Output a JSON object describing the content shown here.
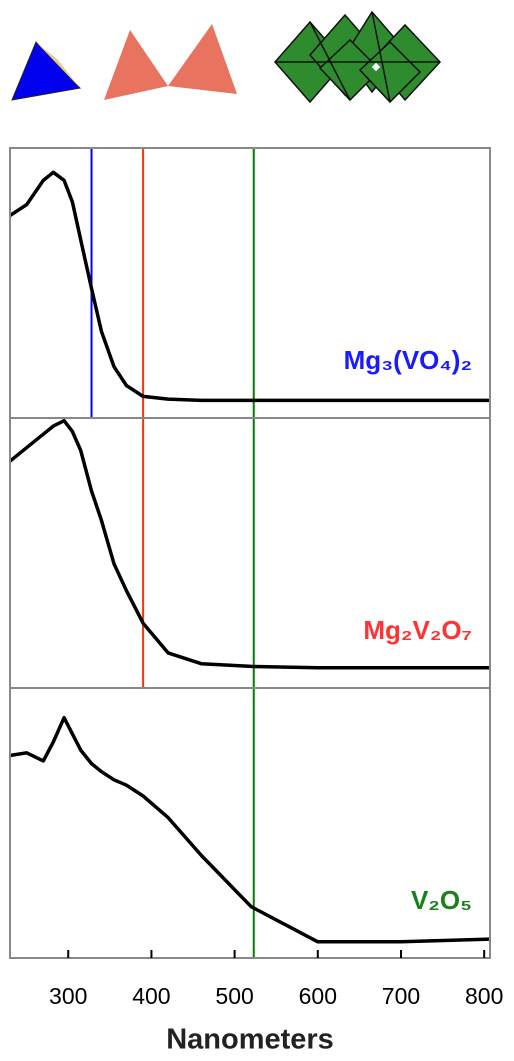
{
  "chart_data": [
    {
      "type": "line",
      "x": [
        230,
        250,
        270,
        282,
        295,
        305,
        315,
        328,
        340,
        355,
        370,
        390,
        420,
        460,
        520,
        600,
        700,
        807
      ],
      "series": [
        {
          "name": "Mg₃(VO₄)₂",
          "color": "#000000",
          "label_color": "#1a1aff",
          "values": [
            0.75,
            0.79,
            0.88,
            0.91,
            0.88,
            0.8,
            0.66,
            0.48,
            0.32,
            0.19,
            0.12,
            0.08,
            0.07,
            0.065,
            0.065,
            0.065,
            0.065,
            0.065
          ]
        }
      ],
      "vlines": [
        {
          "x": 328,
          "color": "#0000ff"
        },
        {
          "x": 390,
          "color": "#ff3300"
        },
        {
          "x": 523,
          "color": "#008000"
        }
      ],
      "xlim": [
        230,
        807
      ],
      "ylim": [
        0,
        1
      ]
    },
    {
      "type": "line",
      "x": [
        230,
        250,
        270,
        282,
        295,
        305,
        315,
        328,
        340,
        355,
        370,
        390,
        420,
        460,
        520,
        600,
        700,
        807
      ],
      "series": [
        {
          "name": "Mg₂V₂O₇",
          "color": "#000000",
          "label_color": "#ff3333",
          "values": [
            0.84,
            0.89,
            0.94,
            0.97,
            0.99,
            0.95,
            0.88,
            0.73,
            0.62,
            0.46,
            0.36,
            0.24,
            0.13,
            0.09,
            0.08,
            0.075,
            0.075,
            0.075
          ]
        }
      ],
      "vlines": [
        {
          "x": 390,
          "color": "#ff3300"
        },
        {
          "x": 523,
          "color": "#008000"
        }
      ],
      "xlim": [
        230,
        807
      ],
      "ylim": [
        0,
        1
      ]
    },
    {
      "type": "line",
      "x": [
        230,
        250,
        270,
        282,
        295,
        305,
        315,
        328,
        340,
        355,
        370,
        390,
        420,
        460,
        520,
        600,
        700,
        807
      ],
      "series": [
        {
          "name": "V₂O₅",
          "color": "#000000",
          "label_color": "#1a801a",
          "values": [
            0.75,
            0.76,
            0.73,
            0.8,
            0.89,
            0.83,
            0.77,
            0.72,
            0.69,
            0.66,
            0.64,
            0.6,
            0.52,
            0.38,
            0.19,
            0.06,
            0.06,
            0.07
          ]
        }
      ],
      "vlines": [
        {
          "x": 523,
          "color": "#008000"
        }
      ],
      "xlim": [
        230,
        807
      ],
      "ylim": [
        0,
        1
      ],
      "xticks": [
        300,
        400,
        500,
        600,
        700,
        800
      ],
      "xlabel": "Nanometers"
    }
  ]
}
